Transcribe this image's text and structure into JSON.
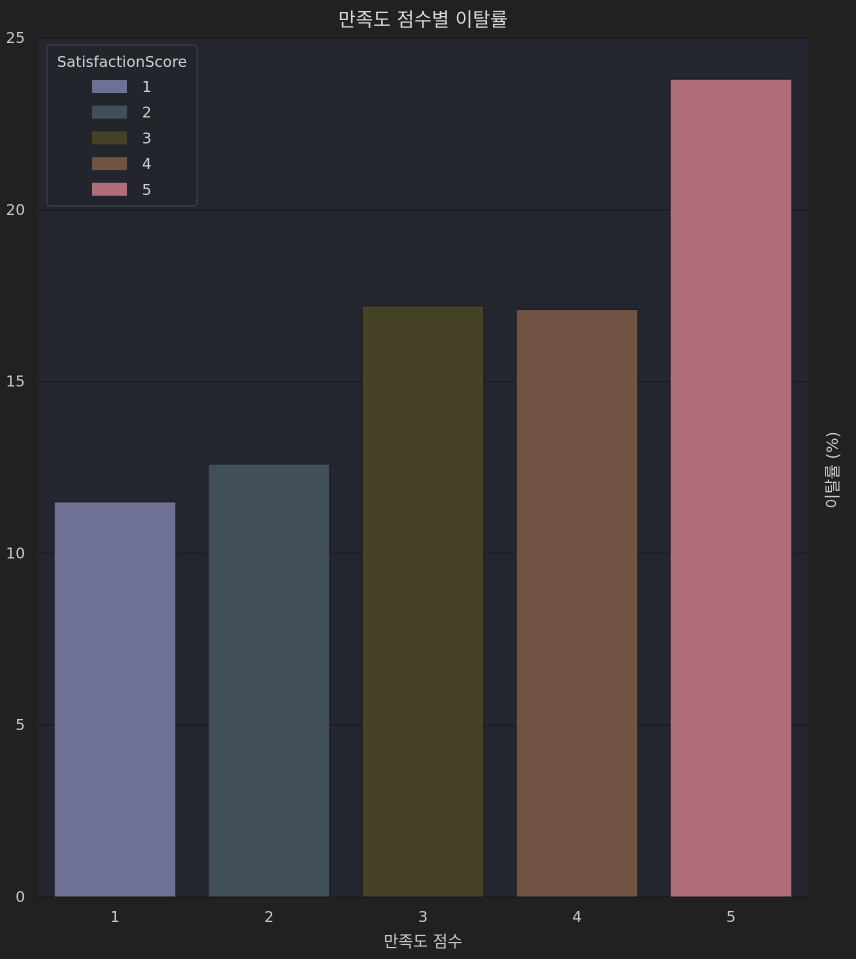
{
  "chart_data": {
    "type": "bar",
    "title": "만족도 점수별 이탈률",
    "xlabel": "만족도 점수",
    "ylabel": "이탈률 (%)",
    "categories": [
      "1",
      "2",
      "3",
      "4",
      "5"
    ],
    "values": [
      11.5,
      12.6,
      17.2,
      17.1,
      23.8
    ],
    "ylim": [
      0,
      25
    ],
    "yticks": [
      0,
      5,
      10,
      15,
      20,
      25
    ],
    "grid": true,
    "legend": {
      "title": "SatisfactionScore",
      "placement": "top-left",
      "entries": [
        "1",
        "2",
        "3",
        "4",
        "5"
      ]
    },
    "colors": [
      "#6e7193",
      "#414f58",
      "#454226",
      "#705343",
      "#b06e7a"
    ],
    "colors_meaning": "one color per satisfaction score 1-5",
    "background": "#212121",
    "plot_background": "#242630",
    "gridline_color": "#1a1b21"
  }
}
